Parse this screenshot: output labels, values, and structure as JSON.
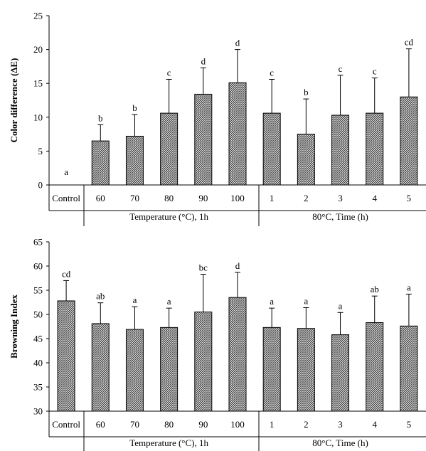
{
  "chart_data": [
    {
      "type": "bar",
      "ylabel": "Color difference (ΔE)",
      "ylim": [
        0,
        25
      ],
      "yticks": [
        0,
        5,
        10,
        15,
        20,
        25
      ],
      "categories": [
        "Control",
        "60",
        "70",
        "80",
        "90",
        "100",
        "1",
        "2",
        "3",
        "4",
        "5"
      ],
      "values": [
        0,
        6.5,
        7.2,
        10.6,
        13.4,
        15.1,
        10.6,
        7.5,
        10.3,
        10.6,
        13.0
      ],
      "errors": [
        0,
        2.4,
        3.2,
        5.0,
        3.9,
        4.9,
        5.0,
        5.2,
        5.9,
        5.2,
        7.1
      ],
      "letters": [
        "a",
        "b",
        "b",
        "c",
        "d",
        "d",
        "c",
        "b",
        "c",
        "c",
        "cd"
      ],
      "groups": [
        {
          "label": "Temperature (°C), 1h",
          "from": 1,
          "to": 5
        },
        {
          "label": "80°C, Time (h)",
          "from": 6,
          "to": 10
        }
      ]
    },
    {
      "type": "bar",
      "ylabel": "Browning Index",
      "ylim": [
        30,
        65
      ],
      "yticks": [
        30,
        35,
        40,
        45,
        50,
        55,
        60,
        65
      ],
      "categories": [
        "Control",
        "60",
        "70",
        "80",
        "90",
        "100",
        "1",
        "2",
        "3",
        "4",
        "5"
      ],
      "values": [
        52.8,
        48.1,
        46.9,
        47.3,
        50.5,
        53.5,
        47.3,
        47.1,
        45.8,
        48.3,
        47.6
      ],
      "errors": [
        4.2,
        4.3,
        4.7,
        4.0,
        7.8,
        5.2,
        4.0,
        4.3,
        4.6,
        5.5,
        6.6
      ],
      "letters": [
        "cd",
        "ab",
        "a",
        "a",
        "bc",
        "d",
        "a",
        "a",
        "a",
        "ab",
        "a"
      ],
      "groups": [
        {
          "label": "Temperature (°C), 1h",
          "from": 1,
          "to": 5
        },
        {
          "label": "80°C, Time (h)",
          "from": 6,
          "to": 10
        }
      ]
    }
  ]
}
